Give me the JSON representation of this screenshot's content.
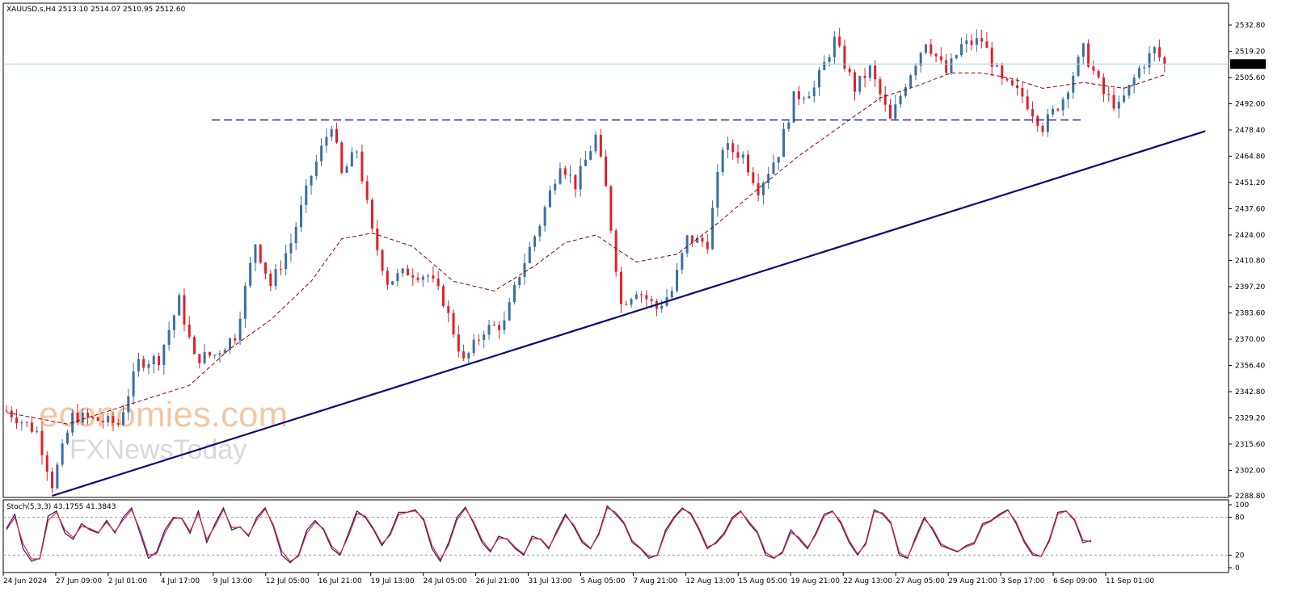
{
  "chart_data": [
    {
      "type": "candlestick",
      "symbol_header": "XAUUSD.s,H4  2513.10 2514.07 2510.95 2512.60",
      "current_price_label": "2512.60",
      "current_price": 2512.6,
      "ylim": [
        2288.8,
        2532.8
      ],
      "y_ticks": [
        "2532.80",
        "2519.20",
        "2505.60",
        "2492.00",
        "2478.40",
        "2464.80",
        "2451.20",
        "2437.60",
        "2424.00",
        "2410.80",
        "2397.20",
        "2383.60",
        "2370.00",
        "2356.40",
        "2342.80",
        "2329.20",
        "2315.60",
        "2302.00",
        "2288.80"
      ],
      "x_ticks": [
        "24 Jun 2024",
        "27 Jun 09:00",
        "2 Jul 01:00",
        "4 Jul 17:00",
        "9 Jul 13:00",
        "12 Jul 05:00",
        "16 Jul 21:00",
        "19 Jul 13:00",
        "24 Jul 05:00",
        "26 Jul 21:00",
        "31 Jul 13:00",
        "5 Aug 05:00",
        "7 Aug 21:00",
        "12 Aug 13:00",
        "15 Aug 05:00",
        "19 Aug 21:00",
        "22 Aug 13:00",
        "27 Aug 05:00",
        "29 Aug 21:00",
        "3 Sep 17:00",
        "6 Sep 09:00",
        "11 Sep 01:00"
      ],
      "bull_color": "#3b6ea5",
      "bear_color": "#e0202a",
      "close_path": [
        [
          0,
          2333
        ],
        [
          6,
          2322
        ],
        [
          9,
          2295
        ],
        [
          13,
          2330
        ],
        [
          18,
          2328
        ],
        [
          22,
          2326
        ],
        [
          26,
          2358
        ],
        [
          30,
          2360
        ],
        [
          34,
          2390
        ],
        [
          37,
          2360
        ],
        [
          41,
          2362
        ],
        [
          45,
          2372
        ],
        [
          49,
          2420
        ],
        [
          52,
          2398
        ],
        [
          56,
          2420
        ],
        [
          60,
          2455
        ],
        [
          64,
          2482
        ],
        [
          66,
          2455
        ],
        [
          69,
          2468
        ],
        [
          72,
          2425
        ],
        [
          75,
          2400
        ],
        [
          79,
          2405
        ],
        [
          83,
          2403
        ],
        [
          86,
          2390
        ],
        [
          90,
          2358
        ],
        [
          94,
          2375
        ],
        [
          98,
          2378
        ],
        [
          101,
          2404
        ],
        [
          105,
          2430
        ],
        [
          109,
          2462
        ],
        [
          112,
          2450
        ],
        [
          116,
          2475
        ],
        [
          118,
          2448
        ],
        [
          121,
          2388
        ],
        [
          124,
          2396
        ],
        [
          128,
          2386
        ],
        [
          131,
          2395
        ],
        [
          134,
          2422
        ],
        [
          138,
          2420
        ],
        [
          141,
          2470
        ],
        [
          145,
          2465
        ],
        [
          148,
          2448
        ],
        [
          152,
          2467
        ],
        [
          155,
          2495
        ],
        [
          159,
          2500
        ],
        [
          163,
          2525
        ],
        [
          167,
          2500
        ],
        [
          170,
          2510
        ],
        [
          174,
          2483
        ],
        [
          177,
          2503
        ],
        [
          181,
          2525
        ],
        [
          185,
          2508
        ],
        [
          188,
          2522
        ],
        [
          192,
          2525
        ],
        [
          196,
          2503
        ],
        [
          200,
          2496
        ],
        [
          204,
          2480
        ],
        [
          208,
          2495
        ],
        [
          212,
          2520
        ],
        [
          216,
          2497
        ],
        [
          219,
          2490
        ],
        [
          223,
          2510
        ],
        [
          226,
          2520
        ],
        [
          228,
          2512
        ]
      ],
      "ma_path": [
        [
          0,
          2332
        ],
        [
          12,
          2326
        ],
        [
          24,
          2336
        ],
        [
          36,
          2346
        ],
        [
          44,
          2365
        ],
        [
          52,
          2380
        ],
        [
          60,
          2400
        ],
        [
          66,
          2422
        ],
        [
          72,
          2425
        ],
        [
          80,
          2418
        ],
        [
          88,
          2400
        ],
        [
          96,
          2395
        ],
        [
          104,
          2408
        ],
        [
          110,
          2420
        ],
        [
          116,
          2424
        ],
        [
          124,
          2410
        ],
        [
          132,
          2414
        ],
        [
          140,
          2430
        ],
        [
          148,
          2448
        ],
        [
          156,
          2465
        ],
        [
          164,
          2480
        ],
        [
          172,
          2495
        ],
        [
          180,
          2502
        ],
        [
          186,
          2508
        ],
        [
          192,
          2508
        ],
        [
          198,
          2505
        ],
        [
          204,
          2500
        ],
        [
          212,
          2503
        ],
        [
          220,
          2500
        ],
        [
          228,
          2507
        ]
      ],
      "resistance_level": 2483.6,
      "trendline": {
        "from": [
          9,
          2288.8
        ],
        "to": [
          236,
          2477.8
        ]
      }
    },
    {
      "type": "line",
      "title": "Stoch(5,3,3) 43.1755 41.3843",
      "ylim": [
        0,
        100
      ],
      "y_ticks": [
        "100",
        "80",
        "20",
        "0"
      ],
      "levels": [
        80,
        20
      ],
      "series": [
        {
          "color": "#1c1c8c",
          "values": [
            62,
            85,
            30,
            10,
            15,
            82,
            90,
            55,
            45,
            70,
            60,
            55,
            75,
            55,
            80,
            95,
            55,
            15,
            25,
            60,
            80,
            78,
            55,
            90,
            40,
            70,
            95,
            60,
            65,
            50,
            80,
            95,
            65,
            20,
            8,
            20,
            60,
            75,
            60,
            30,
            20,
            55,
            90,
            80,
            60,
            35,
            55,
            88,
            88,
            92,
            75,
            30,
            10,
            40,
            80,
            96,
            70,
            40,
            25,
            50,
            45,
            30,
            20,
            50,
            45,
            30,
            60,
            85,
            65,
            40,
            30,
            55,
            98,
            85,
            70,
            40,
            30,
            15,
            20,
            60,
            80,
            95,
            85,
            60,
            30,
            40,
            55,
            80,
            90,
            70,
            55,
            20,
            15,
            25,
            60,
            45,
            30,
            55,
            85,
            90,
            70,
            40,
            20,
            40,
            92,
            85,
            70,
            20,
            15,
            50,
            80,
            60,
            35,
            30,
            25,
            35,
            40,
            70,
            75,
            85,
            92,
            70,
            40,
            20,
            18,
            45,
            88,
            90,
            75,
            40,
            43
          ]
        },
        {
          "color": "#e8202a",
          "values": [
            60,
            80,
            38,
            14,
            14,
            75,
            88,
            60,
            48,
            66,
            62,
            56,
            72,
            57,
            76,
            92,
            60,
            20,
            22,
            55,
            78,
            79,
            58,
            86,
            45,
            66,
            92,
            64,
            64,
            52,
            76,
            93,
            68,
            26,
            10,
            18,
            55,
            72,
            62,
            34,
            22,
            50,
            86,
            82,
            62,
            38,
            52,
            84,
            88,
            90,
            78,
            35,
            13,
            36,
            76,
            94,
            73,
            44,
            27,
            47,
            46,
            32,
            22,
            46,
            46,
            32,
            56,
            82,
            68,
            43,
            31,
            52,
            95,
            88,
            72,
            43,
            31,
            18,
            19,
            56,
            78,
            93,
            87,
            63,
            33,
            38,
            52,
            77,
            89,
            73,
            57,
            24,
            16,
            23,
            56,
            48,
            32,
            52,
            82,
            89,
            73,
            43,
            22,
            37,
            89,
            87,
            72,
            24,
            16,
            46,
            77,
            63,
            38,
            31,
            26,
            33,
            38,
            67,
            74,
            83,
            91,
            73,
            43,
            23,
            18,
            42,
            85,
            90,
            77,
            44,
            41
          ]
        }
      ]
    }
  ],
  "watermark": {
    "line1": "economies.com",
    "line2": "FXNewsToday"
  }
}
